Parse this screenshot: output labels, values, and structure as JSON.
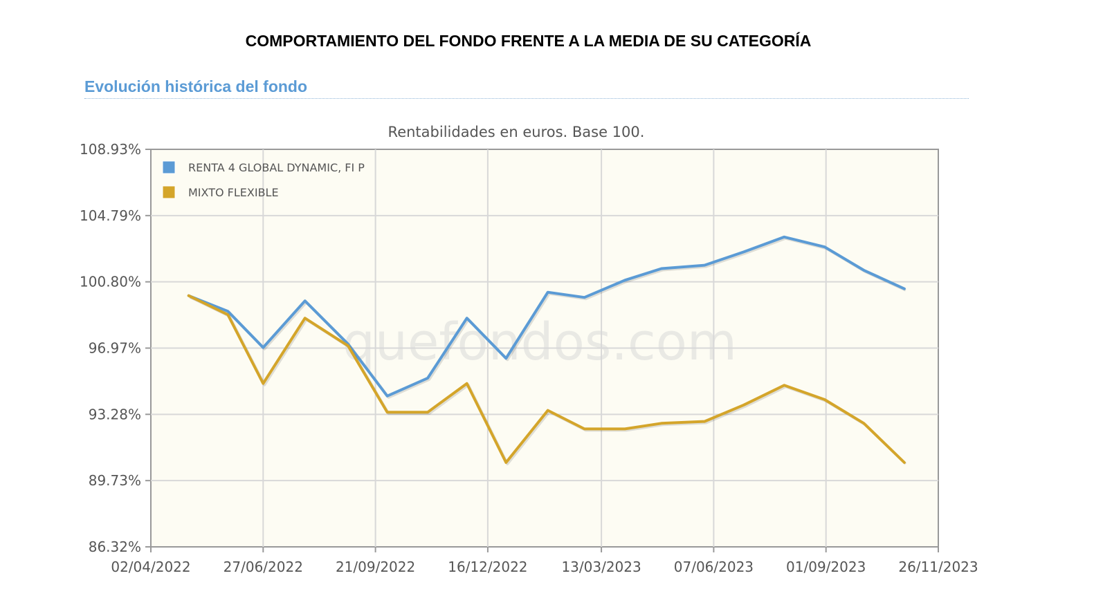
{
  "header": {
    "title": "COMPORTAMIENTO DEL FONDO FRENTE A LA MEDIA DE SU CATEGORÍA",
    "section": "Evolución histórica del fondo"
  },
  "watermark": "quefondos.com",
  "colors": {
    "fund": "#5b9bd5",
    "category": "#d4a52a",
    "plot_bg": "#fdfcf3",
    "grid": "#d8d8d8",
    "frame": "#999999"
  },
  "chart_data": {
    "type": "line",
    "subtitle": "Rentabilidades en euros. Base 100.",
    "x_start": "02/04/2022",
    "x_end": "26/11/2023",
    "x_ticks": [
      "02/04/2022",
      "27/06/2022",
      "21/09/2022",
      "16/12/2022",
      "13/03/2023",
      "07/06/2023",
      "01/09/2023",
      "26/11/2023"
    ],
    "y_ticks": [
      "86.32%",
      "89.73%",
      "93.28%",
      "96.97%",
      "100.80%",
      "104.79%",
      "108.93%"
    ],
    "ylim": [
      86.32,
      108.93
    ],
    "grid": true,
    "legend_position": "top-left",
    "x": [
      "01/05/2022",
      "31/05/2022",
      "27/06/2022",
      "29/07/2022",
      "31/08/2022",
      "30/09/2022",
      "31/10/2022",
      "30/11/2022",
      "30/12/2022",
      "31/01/2023",
      "28/02/2023",
      "31/03/2023",
      "28/04/2023",
      "31/05/2023",
      "30/06/2023",
      "31/07/2023",
      "31/08/2023",
      "30/09/2023",
      "31/10/2023"
    ],
    "series": [
      {
        "name": "RENTA 4 GLOBAL DYNAMIC, FI P",
        "values": [
          100.0,
          99.1,
          97.0,
          99.7,
          97.2,
          94.3,
          95.3,
          98.7,
          96.4,
          100.2,
          99.9,
          100.9,
          101.6,
          101.8,
          102.6,
          103.5,
          102.9,
          101.5,
          100.4
        ]
      },
      {
        "name": "MIXTO FLEXIBLE",
        "values": [
          100.0,
          98.9,
          95.0,
          98.7,
          97.1,
          93.4,
          93.4,
          95.0,
          90.7,
          93.5,
          92.5,
          92.5,
          92.8,
          92.9,
          93.8,
          94.9,
          94.1,
          92.8,
          90.7
        ]
      }
    ]
  }
}
